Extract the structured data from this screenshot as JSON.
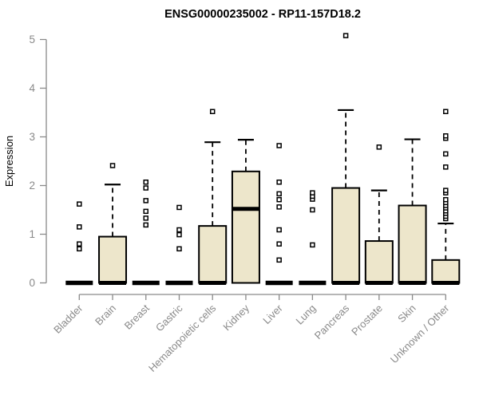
{
  "chart_data": {
    "type": "boxplot",
    "title": "ENSG00000235002 - RP11-157D18.2",
    "ylabel": "Expression",
    "ylim": [
      0,
      5
    ],
    "yticks": [
      0,
      1,
      2,
      3,
      4,
      5
    ],
    "grid": false,
    "categories": [
      "Bladder",
      "Brain",
      "Breast",
      "Gastric",
      "Hematopoietic cells",
      "Kidney",
      "Liver",
      "Lung",
      "Pancreas",
      "Prostate",
      "Skin",
      "Unknown / Other"
    ],
    "series": [
      {
        "name": "Bladder",
        "q1": 0,
        "median": 0,
        "q3": 0,
        "whisker_low": 0,
        "whisker_high": 0,
        "outliers": [
          0.7,
          0.8,
          1.15,
          1.62
        ]
      },
      {
        "name": "Brain",
        "q1": 0,
        "median": 0,
        "q3": 0.95,
        "whisker_low": 0,
        "whisker_high": 2.02,
        "outliers": [
          2.41
        ]
      },
      {
        "name": "Breast",
        "q1": 0,
        "median": 0,
        "q3": 0,
        "whisker_low": 0,
        "whisker_high": 0,
        "outliers": [
          1.19,
          1.33,
          1.47,
          1.69,
          1.95,
          2.07
        ]
      },
      {
        "name": "Gastric",
        "q1": 0,
        "median": 0,
        "q3": 0,
        "whisker_low": 0,
        "whisker_high": 0,
        "outliers": [
          0.7,
          0.99,
          1.09,
          1.55
        ]
      },
      {
        "name": "Hematopoietic cells",
        "q1": 0,
        "median": 0,
        "q3": 1.17,
        "whisker_low": 0,
        "whisker_high": 2.89,
        "outliers": [
          3.52
        ]
      },
      {
        "name": "Kidney",
        "q1": 0,
        "median": 1.52,
        "q3": 2.29,
        "whisker_low": 0,
        "whisker_high": 2.94,
        "outliers": []
      },
      {
        "name": "Liver",
        "q1": 0,
        "median": 0,
        "q3": 0,
        "whisker_low": 0,
        "whisker_high": 0,
        "outliers": [
          0.47,
          0.8,
          1.09,
          1.56,
          1.71,
          1.83,
          2.07,
          2.82
        ]
      },
      {
        "name": "Lung",
        "q1": 0,
        "median": 0,
        "q3": 0,
        "whisker_low": 0,
        "whisker_high": 0,
        "outliers": [
          0.78,
          1.5,
          1.72,
          1.78,
          1.85
        ]
      },
      {
        "name": "Pancreas",
        "q1": 0,
        "median": 0,
        "q3": 1.95,
        "whisker_low": 0,
        "whisker_high": 3.55,
        "outliers": [
          5.08
        ]
      },
      {
        "name": "Prostate",
        "q1": 0,
        "median": 0,
        "q3": 0.86,
        "whisker_low": 0,
        "whisker_high": 1.9,
        "outliers": [
          2.79
        ]
      },
      {
        "name": "Skin",
        "q1": 0,
        "median": 0,
        "q3": 1.59,
        "whisker_low": 0,
        "whisker_high": 2.95,
        "outliers": []
      },
      {
        "name": "Unknown / Other",
        "q1": 0,
        "median": 0,
        "q3": 0.47,
        "whisker_low": 0,
        "whisker_high": 1.22,
        "outliers": [
          1.32,
          1.37,
          1.43,
          1.48,
          1.54,
          1.59,
          1.65,
          1.71,
          1.85,
          1.9,
          2.38,
          2.65,
          2.97,
          3.02,
          3.52
        ]
      }
    ],
    "legend": null
  },
  "colors": {
    "background": "#FFFFFF",
    "box_fill": "#EDE6CB",
    "box_border": "#000000",
    "median": "#000000",
    "whisker": "#000000",
    "outlier_stroke": "#000000",
    "outlier_fill": "#FFFFFF",
    "axis": "#8A8A8A",
    "axis_text": "#8A8A8A",
    "title_text": "#000000"
  }
}
